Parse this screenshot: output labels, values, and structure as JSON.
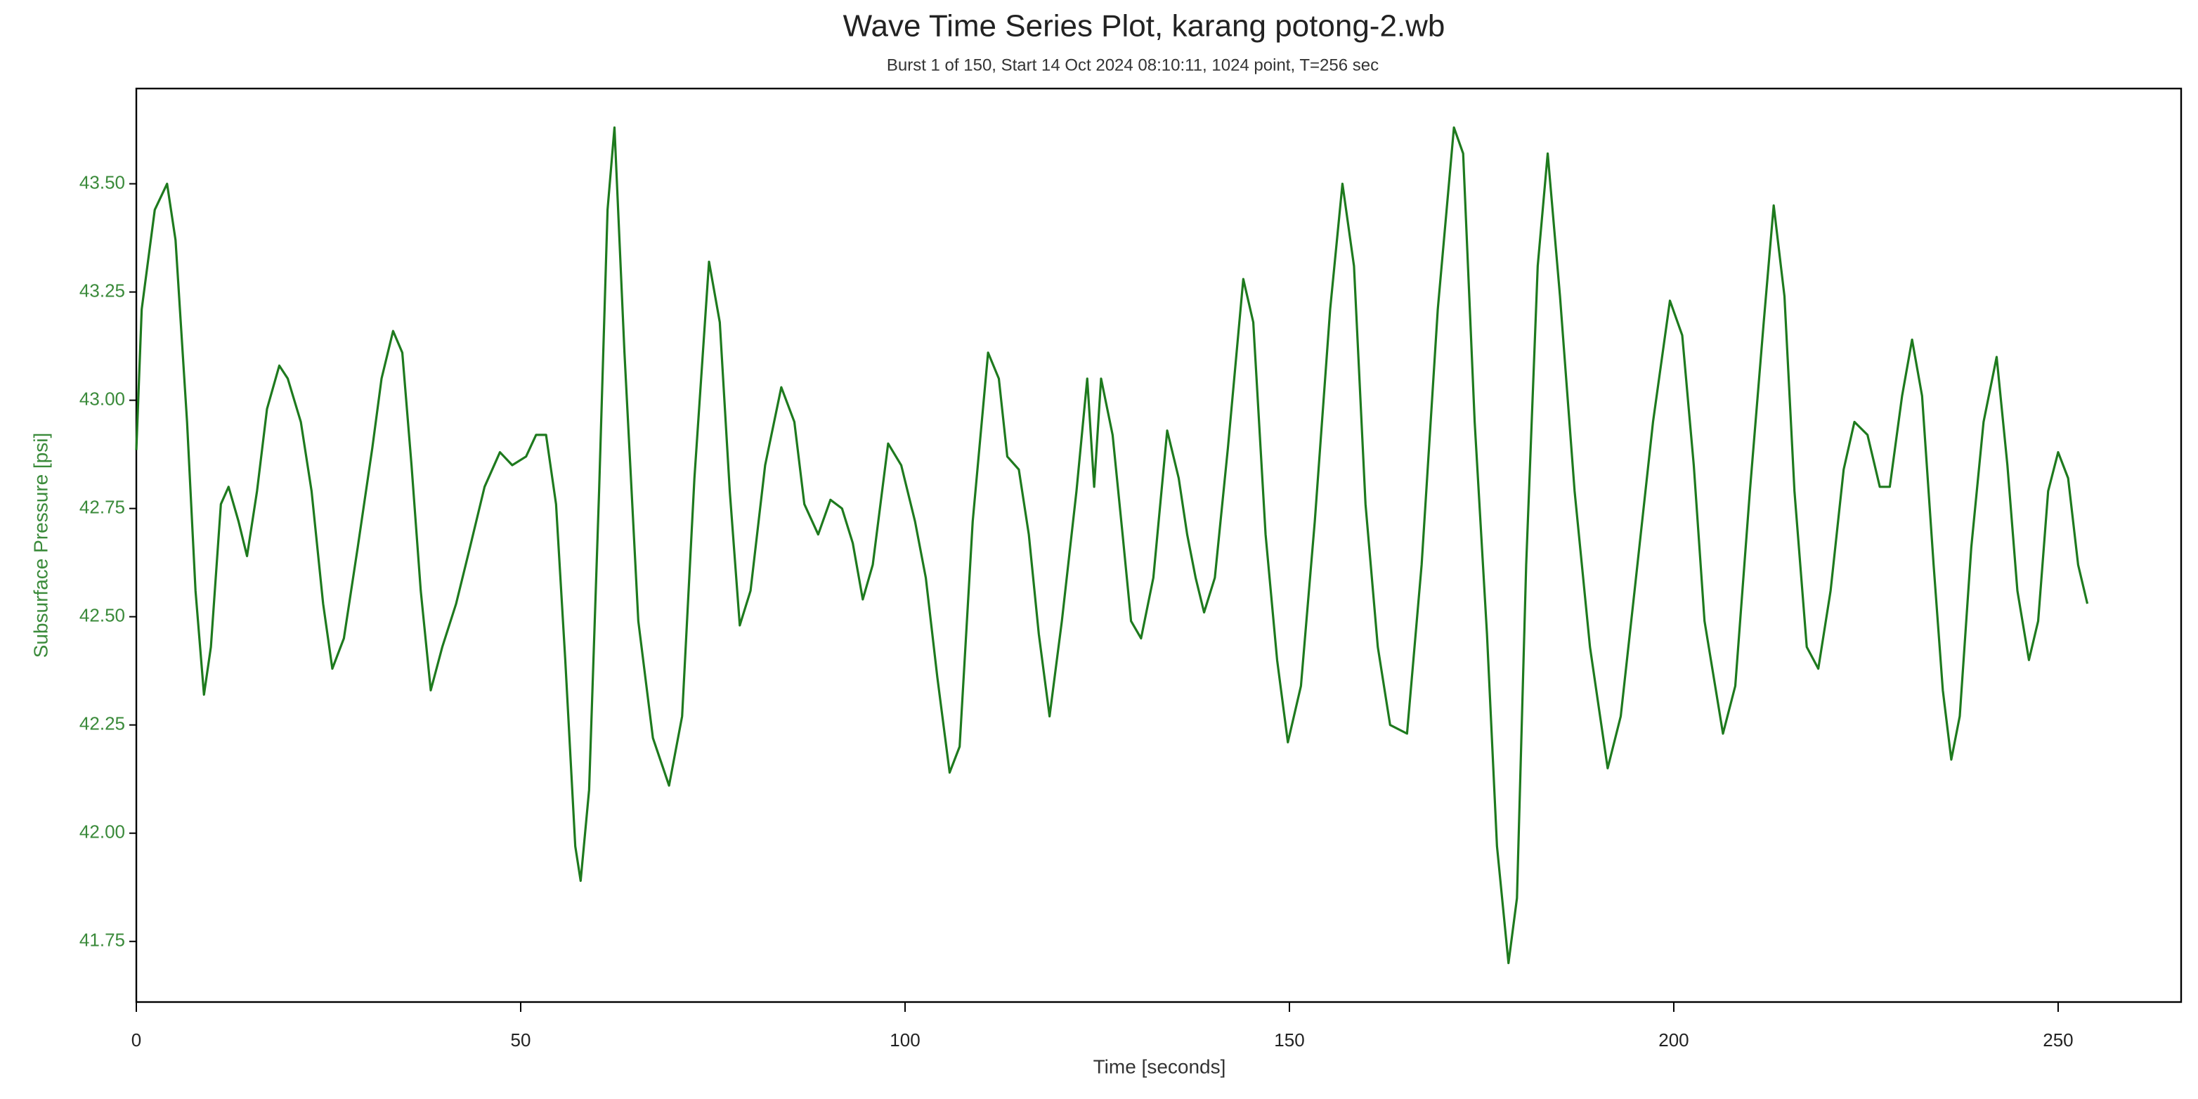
{
  "chart_data": {
    "type": "line",
    "title": "Wave Time Series Plot, karang potong-2.wb",
    "subtitle": "Burst 1 of 150, Start 14 Oct 2024 08:10:11, 1024 point, T=256 sec",
    "x_label": "Time [seconds]",
    "y_label": "Subsurface Pressure [psi]",
    "color": "#1e7a1e",
    "x": [
      0,
      0.7,
      2.4,
      4,
      5.1,
      6.6,
      7.7,
      8.8,
      9.7,
      11,
      12,
      13.3,
      14.4,
      15.7,
      17,
      18.6,
      19.7,
      21.4,
      22.8,
      24.3,
      25.5,
      27,
      28.8,
      30.7,
      31.9,
      33.4,
      34.6,
      35.8,
      37,
      38.3,
      39.8,
      41.6,
      43.4,
      45.3,
      47.3,
      48.9,
      50.7,
      52,
      53.3,
      54.6,
      55.8,
      57.1,
      57.8,
      58.9,
      60.2,
      61.3,
      62.2,
      63.5,
      65.3,
      67.2,
      69.3,
      71,
      72.6,
      74.5,
      75.9,
      77.2,
      78.5,
      79.9,
      81.8,
      83.9,
      85.6,
      86.9,
      88.7,
      90.3,
      91.8,
      93.2,
      94.5,
      95.8,
      97.8,
      99.5,
      101.3,
      102.7,
      104.2,
      105.8,
      107.1,
      108.8,
      110.8,
      112.2,
      113.3,
      114.8,
      116.1,
      117.4,
      118.8,
      120.4,
      122.3,
      123.7,
      124.6,
      125.5,
      127,
      128.3,
      129.4,
      130.7,
      132.3,
      134.1,
      135.6,
      136.7,
      137.8,
      138.9,
      140.3,
      142,
      144,
      145.3,
      146.9,
      148.4,
      149.8,
      151.5,
      153.3,
      155.3,
      156.9,
      158.4,
      159.9,
      161.5,
      163.1,
      165.3,
      167.2,
      169.3,
      171.4,
      172.6,
      174.1,
      175.7,
      177,
      178.5,
      179.6,
      180.8,
      182.3,
      183.6,
      185.2,
      187.1,
      189.1,
      191.4,
      193.1,
      194.9,
      197.3,
      199.5,
      201.1,
      202.6,
      204,
      206.4,
      208,
      209.9,
      211.7,
      213,
      214.4,
      215.7,
      217.3,
      218.8,
      220.4,
      222.1,
      223.5,
      225.2,
      226.8,
      228.1,
      229.7,
      231,
      232.3,
      233.8,
      235,
      236.1,
      237.2,
      238.7,
      240.3,
      242,
      243.4,
      244.7,
      246.2,
      247.4,
      248.7,
      250,
      251.3,
      252.6,
      253.8
    ],
    "values": [
      42.885,
      43.21,
      43.44,
      43.5,
      43.37,
      42.95,
      42.56,
      42.32,
      42.43,
      42.76,
      42.8,
      42.72,
      42.64,
      42.79,
      42.98,
      43.08,
      43.05,
      42.95,
      42.79,
      42.53,
      42.38,
      42.45,
      42.66,
      42.89,
      43.05,
      43.16,
      43.11,
      42.85,
      42.56,
      42.33,
      42.43,
      42.53,
      42.66,
      42.8,
      42.88,
      42.85,
      42.87,
      42.92,
      42.92,
      42.76,
      42.4,
      41.97,
      41.89,
      42.1,
      42.79,
      43.44,
      43.63,
      43.11,
      42.49,
      42.22,
      42.11,
      42.27,
      42.82,
      43.32,
      43.18,
      42.79,
      42.48,
      42.56,
      42.85,
      43.03,
      42.95,
      42.76,
      42.69,
      42.77,
      42.75,
      42.67,
      42.54,
      42.62,
      42.9,
      42.85,
      42.72,
      42.59,
      42.36,
      42.14,
      42.2,
      42.72,
      43.11,
      43.05,
      42.87,
      42.84,
      42.69,
      42.46,
      42.27,
      42.49,
      42.79,
      43.05,
      42.8,
      43.05,
      42.92,
      42.69,
      42.49,
      42.45,
      42.59,
      42.93,
      42.82,
      42.69,
      42.59,
      42.51,
      42.59,
      42.89,
      43.28,
      43.18,
      42.69,
      42.4,
      42.21,
      42.34,
      42.72,
      43.21,
      43.5,
      43.31,
      42.76,
      42.43,
      42.25,
      42.23,
      42.62,
      43.21,
      43.63,
      43.57,
      42.95,
      42.46,
      41.97,
      41.7,
      41.85,
      42.62,
      43.31,
      43.57,
      43.24,
      42.79,
      42.43,
      42.15,
      42.27,
      42.56,
      42.95,
      43.23,
      43.15,
      42.85,
      42.49,
      42.23,
      42.34,
      42.79,
      43.18,
      43.45,
      43.24,
      42.79,
      42.43,
      42.38,
      42.56,
      42.84,
      42.95,
      42.92,
      42.8,
      42.8,
      43.01,
      43.14,
      43.01,
      42.62,
      42.33,
      42.17,
      42.27,
      42.66,
      42.95,
      43.1,
      42.85,
      42.56,
      42.4,
      42.49,
      42.79,
      42.88,
      42.82,
      42.62,
      42.53
    ],
    "xlim": [
      0,
      266
    ],
    "ylim": [
      41.61,
      43.72
    ],
    "xticks": [
      0,
      50,
      100,
      150,
      200,
      250
    ],
    "yticks": [
      {
        "value": 41.75,
        "label": "41.75"
      },
      {
        "value": 42,
        "label": "42.00"
      },
      {
        "value": 42.25,
        "label": "42.25"
      },
      {
        "value": 42.5,
        "label": "42.50"
      },
      {
        "value": 42.75,
        "label": "42.75"
      },
      {
        "value": 43,
        "label": "43.00"
      },
      {
        "value": 43.25,
        "label": "43.25"
      },
      {
        "value": 43.5,
        "label": "43.50"
      }
    ]
  }
}
